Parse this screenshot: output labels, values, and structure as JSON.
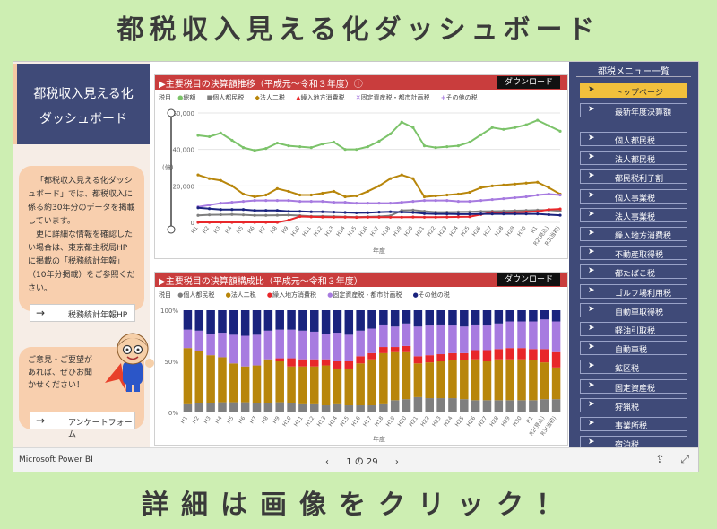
{
  "headline_top": "都税収入見える化ダッシュボード",
  "headline_bottom": "詳細は画像をクリック！",
  "left": {
    "title_line1": "都税収入見える化",
    "title_line2": "ダッシュボード",
    "info_p1": "「都税収入見える化ダッシュボード」では、都税収入に係る約30年分のデータを掲載しています。",
    "info_p2": "更に詳細な情報を確認したい場合は、東京都主税局HPに掲載の「税務統計年報」（10年分掲載）をご参照ください。",
    "stats_button": "税務統計年報HP",
    "ask_text": "ご意見・ご要望があれば、ぜひお聞かせください！",
    "survey_button": "アンケートフォーム"
  },
  "chart1": {
    "header": "▶主要税目の決算額推移（平成元～令和３年度）ⓘ",
    "download": "ダウンロード",
    "legend_title": "税目",
    "legend": [
      "総額",
      "個人都民税",
      "法人二税",
      "繰入地方消費税",
      "固定資産税・都市計画税",
      "その他の税"
    ],
    "ylabel": "(億)",
    "xlabel": "年度",
    "yticks": [
      "60,000",
      "40,000",
      "20,000",
      "0"
    ]
  },
  "chart2": {
    "header": "▶主要税目の決算額構成比（平成元～令和３年度）",
    "download": "ダウンロード",
    "legend_title": "税目",
    "legend": [
      "個人都民税",
      "法人二税",
      "繰入地方消費税",
      "固定資産税・都市計画税",
      "その他の税"
    ],
    "xlabel": "年度",
    "yticks": [
      "100%",
      "50%",
      "0%"
    ]
  },
  "chart_data": [
    {
      "type": "line",
      "title": "主要税目の決算額推移（平成元～令和３年度）",
      "xlabel": "年度",
      "ylabel": "(億)",
      "ylim": [
        0,
        60000
      ],
      "x": [
        "H1",
        "H2",
        "H3",
        "H4",
        "H5",
        "H6",
        "H7",
        "H8",
        "H9",
        "H10",
        "H11",
        "H12",
        "H13",
        "H14",
        "H15",
        "H16",
        "H17",
        "H18",
        "H19",
        "H20",
        "H21",
        "H22",
        "H23",
        "H24",
        "H25",
        "H26",
        "H27",
        "H28",
        "H29",
        "H30",
        "R1",
        "R2(見込)",
        "R3(当初)"
      ],
      "series": [
        {
          "name": "総額",
          "color": "#7cc36a",
          "values": [
            47700,
            47000,
            49000,
            45000,
            41000,
            39500,
            40500,
            43500,
            42000,
            41500,
            41000,
            43000,
            44000,
            40000,
            40000,
            41500,
            44500,
            48500,
            55000,
            52000,
            42000,
            41000,
            41500,
            42000,
            44000,
            48000,
            52000,
            51000,
            52000,
            53500,
            56000,
            53000,
            50000
          ]
        },
        {
          "name": "個人都民税",
          "color": "#7f7f7f",
          "values": [
            3800,
            4100,
            4200,
            4300,
            4100,
            3800,
            3800,
            3900,
            4000,
            3700,
            3300,
            3300,
            3200,
            3000,
            2900,
            3000,
            3200,
            3600,
            6500,
            6700,
            6100,
            5600,
            5600,
            5700,
            5800,
            6000,
            6100,
            6200,
            6400,
            6500,
            6700,
            6700,
            6300
          ]
        },
        {
          "name": "法人二税",
          "color": "#b8860b",
          "values": [
            26000,
            24000,
            23000,
            20000,
            15500,
            14000,
            15000,
            18500,
            17000,
            15000,
            15000,
            16000,
            17000,
            14000,
            14500,
            17000,
            20000,
            24000,
            26000,
            24000,
            14000,
            14500,
            15000,
            15500,
            16500,
            19000,
            20000,
            20500,
            21000,
            21500,
            22000,
            19000,
            15500
          ]
        },
        {
          "name": "繰入地方消費税",
          "color": "#e8272a",
          "values": [
            0,
            0,
            0,
            0,
            0,
            0,
            0,
            0,
            1200,
            3200,
            3000,
            2900,
            2800,
            2800,
            2700,
            2800,
            2800,
            2800,
            2800,
            2900,
            2800,
            2800,
            2900,
            3000,
            3100,
            4300,
            5500,
            5300,
            5500,
            5700,
            6000,
            7000,
            7300
          ]
        },
        {
          "name": "固定資産税・都市計画税",
          "color": "#a77be0",
          "values": [
            8500,
            9500,
            10500,
            11000,
            11500,
            12000,
            12000,
            12000,
            12000,
            11500,
            11500,
            11500,
            11000,
            11000,
            10500,
            10500,
            10500,
            10500,
            11000,
            11500,
            12000,
            12000,
            12000,
            11500,
            11500,
            12000,
            12500,
            13000,
            13500,
            14000,
            15000,
            15500,
            15000
          ]
        },
        {
          "name": "その他の税",
          "color": "#1a237e",
          "values": [
            8000,
            7500,
            7000,
            7000,
            7000,
            6500,
            6500,
            6500,
            6000,
            6000,
            5800,
            5800,
            5600,
            5400,
            5200,
            5300,
            5600,
            5800,
            5600,
            5400,
            4800,
            4600,
            4600,
            4500,
            4500,
            4600,
            4600,
            4600,
            4600,
            4600,
            4600,
            4200,
            3900
          ]
        }
      ]
    },
    {
      "type": "bar",
      "stacked": true,
      "title": "主要税目の決算額構成比（平成元～令和３年度）",
      "xlabel": "年度",
      "ylim": [
        0,
        100
      ],
      "categories": [
        "H1",
        "H2",
        "H3",
        "H4",
        "H5",
        "H6",
        "H7",
        "H8",
        "H9",
        "H10",
        "H11",
        "H12",
        "H13",
        "H14",
        "H15",
        "H16",
        "H17",
        "H18",
        "H19",
        "H20",
        "H21",
        "H22",
        "H23",
        "H24",
        "H25",
        "H26",
        "H27",
        "H28",
        "H29",
        "H30",
        "R1",
        "R2(見込)",
        "R3(当初)"
      ],
      "series": [
        {
          "name": "個人都民税",
          "color": "#7f7f7f",
          "values": [
            8,
            9,
            9,
            10,
            10,
            10,
            9,
            9,
            10,
            9,
            8,
            8,
            7,
            8,
            7,
            7,
            7,
            8,
            12,
            13,
            15,
            14,
            14,
            14,
            13,
            12,
            12,
            12,
            12,
            12,
            12,
            13,
            13
          ]
        },
        {
          "name": "法人二税",
          "color": "#b8860b",
          "values": [
            55,
            51,
            47,
            44,
            38,
            35,
            37,
            43,
            40,
            36,
            37,
            37,
            39,
            35,
            36,
            41,
            45,
            50,
            47,
            46,
            33,
            35,
            36,
            37,
            38,
            40,
            38,
            40,
            40,
            40,
            39,
            36,
            31
          ]
        },
        {
          "name": "繰入地方消費税",
          "color": "#e8272a",
          "values": [
            0,
            0,
            0,
            0,
            0,
            0,
            0,
            0,
            3,
            8,
            7,
            7,
            6,
            7,
            7,
            7,
            6,
            6,
            5,
            6,
            7,
            7,
            7,
            7,
            7,
            9,
            11,
            10,
            11,
            11,
            11,
            13,
            15
          ]
        },
        {
          "name": "固定資産税・都市計画税",
          "color": "#a77be0",
          "values": [
            18,
            20,
            21,
            24,
            28,
            30,
            30,
            28,
            28,
            28,
            28,
            27,
            25,
            28,
            26,
            25,
            24,
            22,
            20,
            22,
            29,
            29,
            29,
            27,
            26,
            25,
            24,
            25,
            26,
            26,
            27,
            29,
            30
          ]
        },
        {
          "name": "その他の税",
          "color": "#1a237e",
          "values": [
            19,
            20,
            23,
            22,
            24,
            25,
            24,
            20,
            19,
            19,
            20,
            21,
            23,
            22,
            24,
            20,
            18,
            14,
            16,
            13,
            16,
            15,
            14,
            15,
            16,
            14,
            15,
            13,
            11,
            11,
            11,
            9,
            11
          ]
        }
      ]
    }
  ],
  "menu": {
    "title": "都税メニュー一覧",
    "items": [
      "トップページ",
      "最新年度決算額",
      "個人都民税",
      "法人都民税",
      "都民税利子割",
      "個人事業税",
      "法人事業税",
      "繰入地方消費税",
      "不動産取得税",
      "都たばこ税",
      "ゴルフ場利用税",
      "自動車取得税",
      "軽油引取税",
      "自動車税",
      "鉱区税",
      "固定資産税",
      "狩猟税",
      "事業所税",
      "宿泊税"
    ]
  },
  "footer": {
    "brand": "Microsoft Power BI",
    "pager": "1 の 29"
  }
}
